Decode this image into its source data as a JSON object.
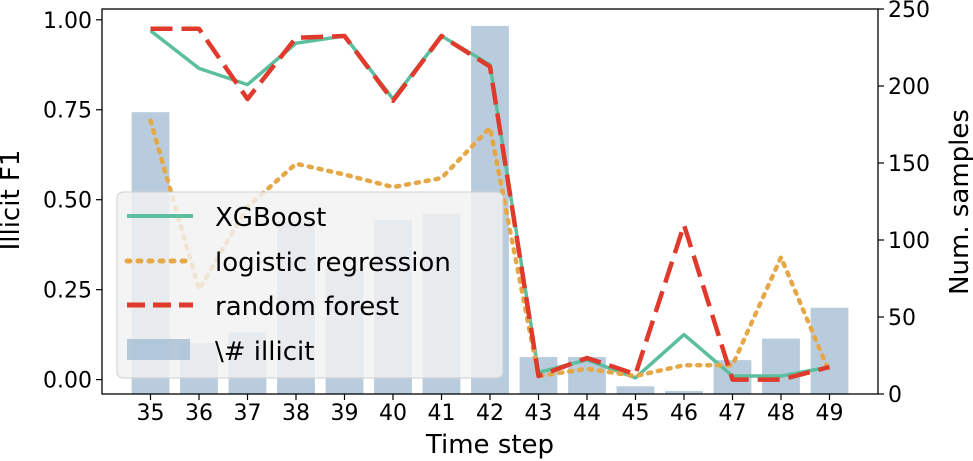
{
  "chart_data": {
    "type": "bar+line",
    "x": [
      35,
      36,
      37,
      38,
      39,
      40,
      41,
      42,
      43,
      44,
      45,
      46,
      47,
      48,
      49
    ],
    "xlabel": "Time step",
    "ylabel_left": "Illicit F1",
    "ylabel_right": "Num. samples",
    "ylim_left": [
      -0.04,
      1.03
    ],
    "ylim_right": [
      0,
      250
    ],
    "yticks_left": [
      "0.00",
      "0.25",
      "0.50",
      "0.75",
      "1.00"
    ],
    "yticks_right": [
      "0",
      "50",
      "100",
      "150",
      "200",
      "250"
    ],
    "bars": {
      "name": "\\# illicit",
      "color": "#a2bbd3",
      "axis": "right",
      "values": [
        183,
        33,
        40,
        112,
        81,
        113,
        117,
        239,
        24,
        24,
        5,
        2,
        22,
        36,
        56
      ]
    },
    "series": [
      {
        "name": "XGBoost",
        "color": "#5bbf9f",
        "style": "solid",
        "values": [
          0.97,
          0.865,
          0.82,
          0.935,
          0.955,
          0.78,
          0.955,
          0.875,
          0.02,
          0.055,
          0.005,
          0.125,
          0.01,
          0.01,
          0.035
        ]
      },
      {
        "name": "logistic regression",
        "color": "#e6a847",
        "style": "dotted",
        "values": [
          0.72,
          0.25,
          0.48,
          0.6,
          0.57,
          0.535,
          0.56,
          0.7,
          0.01,
          0.03,
          0.01,
          0.04,
          0.04,
          0.34,
          0.02
        ]
      },
      {
        "name": "random forest",
        "color": "#df3a2b",
        "style": "dashed",
        "values": [
          0.975,
          0.975,
          0.78,
          0.95,
          0.955,
          0.775,
          0.955,
          0.87,
          0.01,
          0.06,
          0.015,
          0.43,
          0.0,
          0.0,
          0.035
        ]
      }
    ],
    "legend": {
      "placement": "center-left"
    },
    "grid": false
  }
}
